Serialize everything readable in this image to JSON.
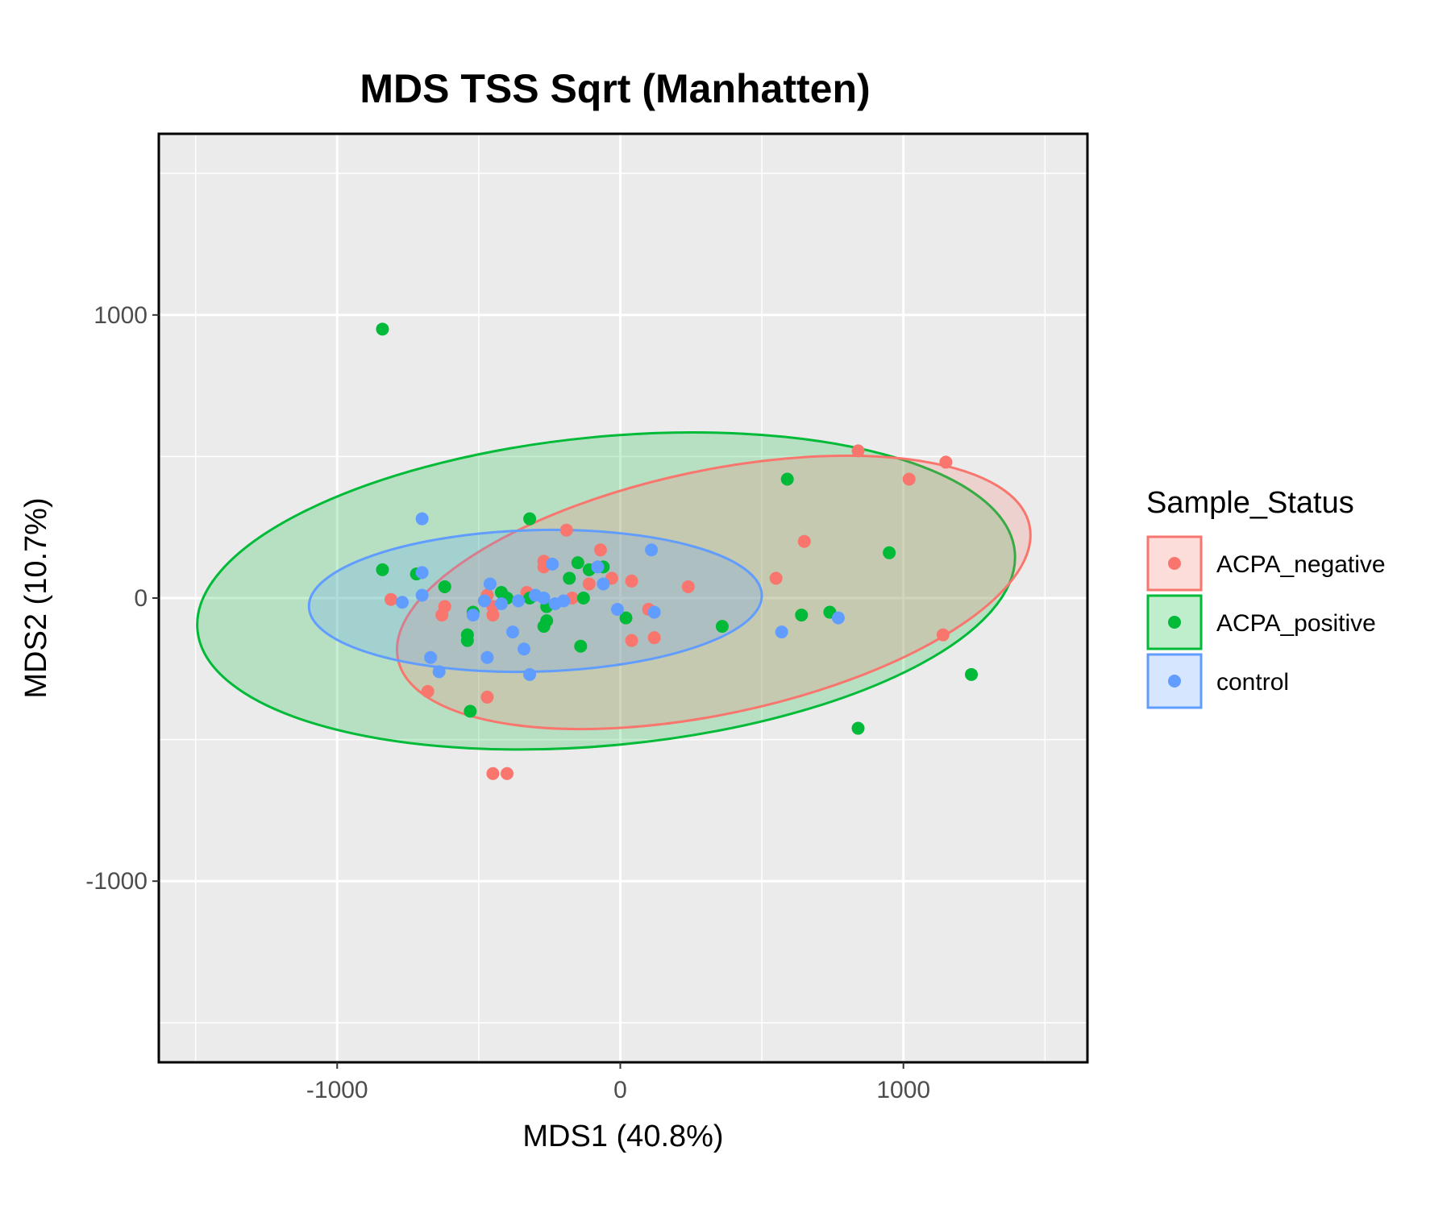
{
  "chart_data": {
    "type": "scatter",
    "title": "MDS TSS Sqrt (Manhatten)",
    "xlabel": "MDS1 (40.8%)",
    "ylabel": "MDS2 (10.7%)",
    "xlim": [
      -1630,
      1650
    ],
    "ylim": [
      -1640,
      1640
    ],
    "x_ticks": [
      -1000,
      0,
      1000
    ],
    "x_tick_labels": [
      "-1000",
      "0",
      "1000"
    ],
    "y_ticks": [
      -1000,
      0,
      1000
    ],
    "y_tick_labels": [
      "-1000",
      "0",
      "1000"
    ],
    "grid": true,
    "legend": {
      "title": "Sample_Status",
      "position": "right",
      "entries": [
        "ACPA_negative",
        "ACPA_positive",
        "control"
      ]
    },
    "series": [
      {
        "name": "ACPA_negative",
        "color": "#F8766D",
        "ellipse": {
          "cx": 330,
          "cy": 20,
          "rx": 1140,
          "ry": 430,
          "angle_deg": 12
        },
        "points": [
          [
            1150,
            480
          ],
          [
            840,
            520
          ],
          [
            1020,
            420
          ],
          [
            650,
            200
          ],
          [
            550,
            70
          ],
          [
            1140,
            -130
          ],
          [
            240,
            40
          ],
          [
            40,
            -150
          ],
          [
            120,
            -140
          ],
          [
            100,
            -40
          ],
          [
            40,
            60
          ],
          [
            -30,
            70
          ],
          [
            -70,
            170
          ],
          [
            -110,
            50
          ],
          [
            -170,
            0
          ],
          [
            -190,
            240
          ],
          [
            -270,
            130
          ],
          [
            -270,
            110
          ],
          [
            -330,
            20
          ],
          [
            -450,
            -60
          ],
          [
            -470,
            10
          ],
          [
            -450,
            -30
          ],
          [
            -630,
            -60
          ],
          [
            -620,
            -30
          ],
          [
            -810,
            -5
          ],
          [
            -680,
            -330
          ],
          [
            -470,
            -350
          ],
          [
            -450,
            -620
          ],
          [
            -400,
            -620
          ]
        ]
      },
      {
        "name": "ACPA_positive",
        "color": "#00BA38",
        "ellipse": {
          "cx": -50,
          "cy": 25,
          "rx": 1450,
          "ry": 545,
          "angle_deg": 5.5
        },
        "points": [
          [
            -840,
            950
          ],
          [
            590,
            420
          ],
          [
            950,
            160
          ],
          [
            -320,
            280
          ],
          [
            -840,
            100
          ],
          [
            -720,
            85
          ],
          [
            -620,
            40
          ],
          [
            -520,
            -50
          ],
          [
            -540,
            -130
          ],
          [
            -540,
            -150
          ],
          [
            -530,
            -400
          ],
          [
            -420,
            20
          ],
          [
            -400,
            0
          ],
          [
            -320,
            0
          ],
          [
            -260,
            -30
          ],
          [
            -260,
            -80
          ],
          [
            -270,
            -100
          ],
          [
            -180,
            70
          ],
          [
            -150,
            125
          ],
          [
            -130,
            0
          ],
          [
            -110,
            100
          ],
          [
            -60,
            110
          ],
          [
            20,
            -70
          ],
          [
            360,
            -100
          ],
          [
            640,
            -60
          ],
          [
            740,
            -50
          ],
          [
            840,
            -460
          ],
          [
            1240,
            -270
          ],
          [
            -140,
            -170
          ]
        ]
      },
      {
        "name": "control",
        "color": "#619CFF",
        "ellipse": {
          "cx": -300,
          "cy": -10,
          "rx": 800,
          "ry": 250,
          "angle_deg": 1.5
        },
        "points": [
          [
            -700,
            280
          ],
          [
            -700,
            90
          ],
          [
            -700,
            10
          ],
          [
            -770,
            -15
          ],
          [
            -670,
            -210
          ],
          [
            -640,
            -260
          ],
          [
            -520,
            -60
          ],
          [
            -460,
            50
          ],
          [
            -470,
            -210
          ],
          [
            -480,
            -10
          ],
          [
            -420,
            -20
          ],
          [
            -380,
            -120
          ],
          [
            -360,
            -10
          ],
          [
            -340,
            -180
          ],
          [
            -320,
            -270
          ],
          [
            -300,
            10
          ],
          [
            -270,
            0
          ],
          [
            -240,
            120
          ],
          [
            -230,
            -20
          ],
          [
            -200,
            -10
          ],
          [
            -60,
            50
          ],
          [
            -80,
            110
          ],
          [
            -10,
            -40
          ],
          [
            110,
            170
          ],
          [
            120,
            -50
          ],
          [
            570,
            -120
          ],
          [
            770,
            -70
          ]
        ]
      }
    ]
  }
}
